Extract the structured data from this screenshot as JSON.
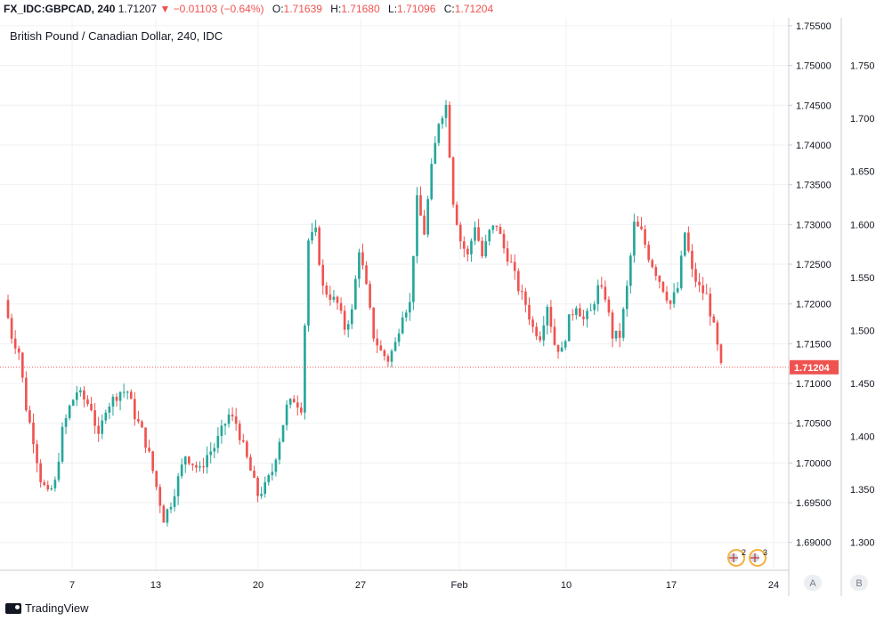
{
  "header": {
    "symbol": "FX_IDC:GBPCAD, 240",
    "last": "1.71207",
    "change": "▼ −0.01103 (−0.64%)",
    "o_label": "O:",
    "o": "1.71639",
    "h_label": "H:",
    "h": "1.71680",
    "l_label": "L:",
    "l": "1.71096",
    "c_label": "C:",
    "c": "1.71204"
  },
  "footer": {
    "brand": "TradingView"
  },
  "chart_data": {
    "type": "candlestick",
    "title": "British Pound / Canadian Dollar, 240, IDC",
    "x_tick_labels": [
      "7",
      "13",
      "20",
      "27",
      "Feb",
      "10",
      "17",
      "24"
    ],
    "y_left_ticks": [
      "1.75500",
      "1.75000",
      "1.74500",
      "1.74000",
      "1.73500",
      "1.73000",
      "1.72500",
      "1.72000",
      "1.71500",
      "1.71000",
      "1.70500",
      "1.70000",
      "1.69500",
      "1.69000"
    ],
    "y_right_ticks": [
      "1.750",
      "1.700",
      "1.650",
      "1.600",
      "1.550",
      "1.500",
      "1.450",
      "1.400",
      "1.350",
      "1.300"
    ],
    "ylim": [
      1.6865,
      1.756
    ],
    "last_price": 1.71204,
    "last_price_label": "1.71204",
    "scale_buttons": [
      "A",
      "B"
    ],
    "event_badges": [
      "2",
      "3"
    ],
    "grid": true,
    "up_color": "#26a69a",
    "down_color": "#ef5350",
    "close_path": [
      1.7205,
      1.716,
      1.714,
      1.707,
      1.703,
      1.698,
      1.696,
      1.6975,
      1.704,
      1.707,
      1.709,
      1.708,
      1.707,
      1.703,
      1.707,
      1.708,
      1.709,
      1.709,
      1.706,
      1.704,
      1.701,
      1.697,
      1.693,
      1.695,
      1.698,
      1.701,
      1.7,
      1.699,
      1.701,
      1.702,
      1.704,
      1.706,
      1.705,
      1.702,
      1.699,
      1.696,
      1.697,
      1.699,
      1.703,
      1.707,
      1.708,
      1.707,
      1.728,
      1.729,
      1.722,
      1.721,
      1.72,
      1.717,
      1.719,
      1.727,
      1.722,
      1.716,
      1.714,
      1.713,
      1.715,
      1.719,
      1.72,
      1.733,
      1.729,
      1.737,
      1.743,
      1.745,
      1.733,
      1.728,
      1.726,
      1.73,
      1.726,
      1.729,
      1.73,
      1.727,
      1.725,
      1.722,
      1.72,
      1.717,
      1.716,
      1.72,
      1.715,
      1.714,
      1.718,
      1.72,
      1.718,
      1.719,
      1.722,
      1.721,
      1.716,
      1.716,
      1.722,
      1.73,
      1.729,
      1.726,
      1.724,
      1.722,
      1.72,
      1.722,
      1.729,
      1.724,
      1.722,
      1.721,
      1.717,
      1.712
    ]
  }
}
